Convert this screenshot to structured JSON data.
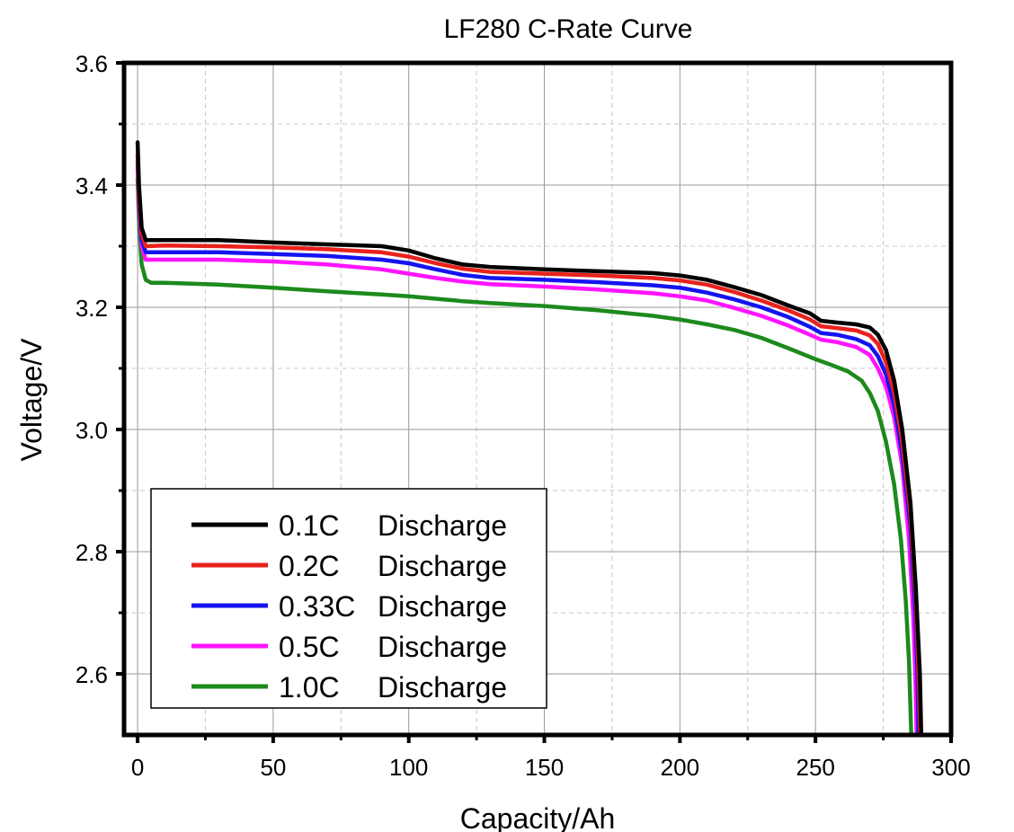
{
  "chart_data": {
    "type": "line",
    "title": "LF280 C-Rate Curve",
    "xlabel": "Capacity/Ah",
    "ylabel": "Voltage/V",
    "xlim": [
      -5,
      300
    ],
    "ylim": [
      2.5,
      3.6
    ],
    "xticks": [
      0,
      50,
      100,
      150,
      200,
      250,
      300
    ],
    "xtick_labels": [
      "0",
      "50",
      "100",
      "150",
      "200",
      "250",
      "300"
    ],
    "yticks": [
      2.6,
      2.8,
      3.0,
      3.2,
      3.4,
      3.6
    ],
    "ytick_labels": [
      "2.6",
      "2.8",
      "3.0",
      "3.2",
      "3.4",
      "3.6"
    ],
    "grid": true,
    "legend_position": "bottom-left",
    "series": [
      {
        "name": "0.1C",
        "legend_label": "Discharge",
        "color": "#000000",
        "points": [
          [
            0,
            3.47
          ],
          [
            0.5,
            3.4
          ],
          [
            1.5,
            3.33
          ],
          [
            3,
            3.31
          ],
          [
            10,
            3.31
          ],
          [
            30,
            3.31
          ],
          [
            50,
            3.306
          ],
          [
            70,
            3.303
          ],
          [
            90,
            3.3
          ],
          [
            100,
            3.293
          ],
          [
            110,
            3.28
          ],
          [
            120,
            3.27
          ],
          [
            130,
            3.266
          ],
          [
            150,
            3.262
          ],
          [
            170,
            3.259
          ],
          [
            190,
            3.256
          ],
          [
            200,
            3.252
          ],
          [
            210,
            3.245
          ],
          [
            220,
            3.233
          ],
          [
            230,
            3.22
          ],
          [
            240,
            3.203
          ],
          [
            248,
            3.19
          ],
          [
            252,
            3.178
          ],
          [
            258,
            3.175
          ],
          [
            265,
            3.172
          ],
          [
            270,
            3.167
          ],
          [
            273,
            3.155
          ],
          [
            276,
            3.13
          ],
          [
            279,
            3.08
          ],
          [
            282,
            3.0
          ],
          [
            285,
            2.88
          ],
          [
            287,
            2.74
          ],
          [
            288.5,
            2.6
          ],
          [
            289,
            2.5
          ]
        ]
      },
      {
        "name": "0.2C",
        "legend_label": "Discharge",
        "color": "#e8211c",
        "points": [
          [
            0,
            3.45
          ],
          [
            0.5,
            3.38
          ],
          [
            1.5,
            3.32
          ],
          [
            3,
            3.3
          ],
          [
            10,
            3.301
          ],
          [
            30,
            3.3
          ],
          [
            50,
            3.298
          ],
          [
            70,
            3.295
          ],
          [
            90,
            3.29
          ],
          [
            100,
            3.283
          ],
          [
            110,
            3.272
          ],
          [
            120,
            3.263
          ],
          [
            130,
            3.258
          ],
          [
            150,
            3.255
          ],
          [
            170,
            3.252
          ],
          [
            190,
            3.248
          ],
          [
            200,
            3.244
          ],
          [
            210,
            3.237
          ],
          [
            220,
            3.225
          ],
          [
            230,
            3.211
          ],
          [
            240,
            3.195
          ],
          [
            248,
            3.18
          ],
          [
            252,
            3.169
          ],
          [
            258,
            3.166
          ],
          [
            265,
            3.162
          ],
          [
            270,
            3.154
          ],
          [
            273,
            3.14
          ],
          [
            276,
            3.11
          ],
          [
            279,
            3.06
          ],
          [
            282,
            2.98
          ],
          [
            285,
            2.86
          ],
          [
            287,
            2.72
          ],
          [
            288,
            2.6
          ],
          [
            288.6,
            2.5
          ]
        ]
      },
      {
        "name": "0.33C",
        "legend_label": "Discharge",
        "color": "#1414f0",
        "points": [
          [
            0,
            3.44
          ],
          [
            0.5,
            3.37
          ],
          [
            1.5,
            3.31
          ],
          [
            3,
            3.29
          ],
          [
            10,
            3.29
          ],
          [
            30,
            3.29
          ],
          [
            50,
            3.287
          ],
          [
            70,
            3.284
          ],
          [
            90,
            3.278
          ],
          [
            100,
            3.272
          ],
          [
            110,
            3.262
          ],
          [
            120,
            3.253
          ],
          [
            130,
            3.248
          ],
          [
            150,
            3.245
          ],
          [
            170,
            3.241
          ],
          [
            190,
            3.236
          ],
          [
            200,
            3.232
          ],
          [
            210,
            3.224
          ],
          [
            220,
            3.213
          ],
          [
            230,
            3.2
          ],
          [
            240,
            3.184
          ],
          [
            248,
            3.168
          ],
          [
            252,
            3.158
          ],
          [
            258,
            3.155
          ],
          [
            265,
            3.148
          ],
          [
            270,
            3.138
          ],
          [
            273,
            3.12
          ],
          [
            276,
            3.09
          ],
          [
            279,
            3.04
          ],
          [
            282,
            2.96
          ],
          [
            285,
            2.84
          ],
          [
            286.8,
            2.7
          ],
          [
            287.6,
            2.6
          ],
          [
            288,
            2.5
          ]
        ]
      },
      {
        "name": "0.5C",
        "legend_label": "Discharge",
        "color": "#ff14ff",
        "points": [
          [
            0,
            3.43
          ],
          [
            0.5,
            3.36
          ],
          [
            1.5,
            3.3
          ],
          [
            3,
            3.278
          ],
          [
            10,
            3.278
          ],
          [
            30,
            3.278
          ],
          [
            50,
            3.275
          ],
          [
            70,
            3.27
          ],
          [
            90,
            3.262
          ],
          [
            100,
            3.255
          ],
          [
            110,
            3.248
          ],
          [
            120,
            3.242
          ],
          [
            130,
            3.238
          ],
          [
            150,
            3.234
          ],
          [
            170,
            3.229
          ],
          [
            190,
            3.223
          ],
          [
            200,
            3.218
          ],
          [
            210,
            3.211
          ],
          [
            220,
            3.199
          ],
          [
            230,
            3.186
          ],
          [
            240,
            3.17
          ],
          [
            248,
            3.155
          ],
          [
            252,
            3.147
          ],
          [
            258,
            3.143
          ],
          [
            265,
            3.135
          ],
          [
            270,
            3.122
          ],
          [
            273,
            3.1
          ],
          [
            276,
            3.07
          ],
          [
            279,
            3.02
          ],
          [
            282,
            2.94
          ],
          [
            284.5,
            2.82
          ],
          [
            286,
            2.7
          ],
          [
            286.8,
            2.6
          ],
          [
            287.3,
            2.5
          ]
        ]
      },
      {
        "name": "1.0C",
        "legend_label": "Discharge",
        "color": "#1c8a1c",
        "points": [
          [
            0,
            3.41
          ],
          [
            0.6,
            3.33
          ],
          [
            1.5,
            3.27
          ],
          [
            3,
            3.245
          ],
          [
            5,
            3.24
          ],
          [
            10,
            3.24
          ],
          [
            30,
            3.237
          ],
          [
            50,
            3.232
          ],
          [
            70,
            3.226
          ],
          [
            90,
            3.221
          ],
          [
            100,
            3.218
          ],
          [
            110,
            3.214
          ],
          [
            120,
            3.21
          ],
          [
            130,
            3.207
          ],
          [
            150,
            3.202
          ],
          [
            170,
            3.195
          ],
          [
            190,
            3.186
          ],
          [
            200,
            3.18
          ],
          [
            210,
            3.172
          ],
          [
            220,
            3.163
          ],
          [
            230,
            3.15
          ],
          [
            240,
            3.133
          ],
          [
            250,
            3.115
          ],
          [
            255,
            3.107
          ],
          [
            262,
            3.095
          ],
          [
            267,
            3.08
          ],
          [
            270,
            3.06
          ],
          [
            273,
            3.03
          ],
          [
            276,
            2.98
          ],
          [
            279,
            2.91
          ],
          [
            281.5,
            2.82
          ],
          [
            283.3,
            2.72
          ],
          [
            284.5,
            2.62
          ],
          [
            285.3,
            2.5
          ]
        ]
      }
    ]
  }
}
